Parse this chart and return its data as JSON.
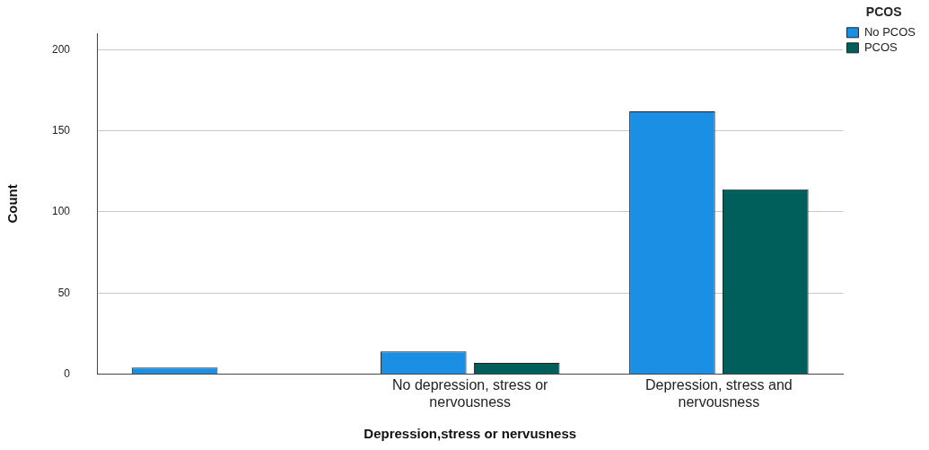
{
  "chart_data": {
    "type": "bar",
    "xlabel": "Depression,stress or nervusness",
    "ylabel": "Count",
    "legend_title": "PCOS",
    "categories": [
      null,
      "No depression, stress or nervousness",
      "Depression, stress and nervousness"
    ],
    "series": [
      {
        "name": "No PCOS",
        "color": "#1b8fe3",
        "values": [
          4,
          14,
          162
        ]
      },
      {
        "name": "PCOS",
        "color": "#005f5b",
        "values": [
          0,
          7,
          114
        ]
      }
    ],
    "ylim": [
      0,
      210
    ],
    "yticks": [
      0,
      50,
      100,
      150,
      200
    ],
    "grid": "y",
    "legend": "top right"
  }
}
